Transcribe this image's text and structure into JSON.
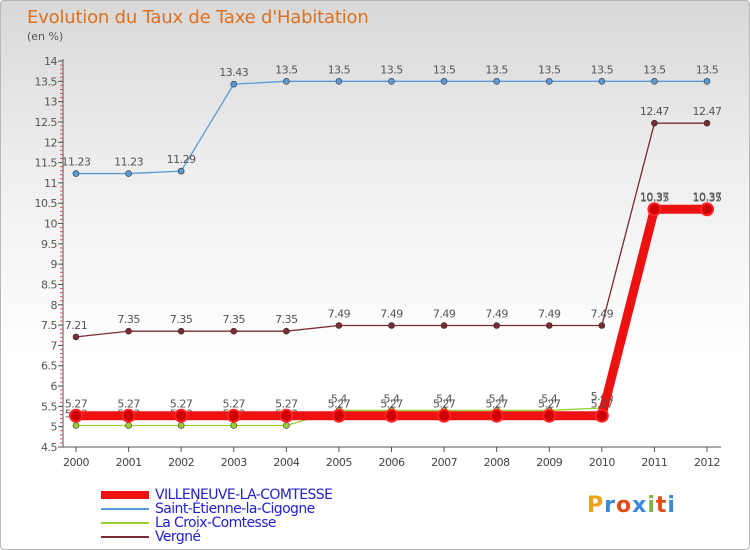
{
  "title": "Evolution du Taux de Taxe d'Habitation",
  "unit": "(en %)",
  "logo_text": "Proxiti",
  "chart_data": {
    "type": "line",
    "title": "Evolution du Taux de Taxe d'Habitation",
    "ylabel": "(en %)",
    "ylim": [
      4.5,
      14
    ],
    "yticks": [
      "4.5",
      "5",
      "5.5",
      "6",
      "6.5",
      "7",
      "7.5",
      "8",
      "8.5",
      "9",
      "9.5",
      "10",
      "10.5",
      "11",
      "11.5",
      "12",
      "12.5",
      "13",
      "13.5",
      "14"
    ],
    "x": [
      "2000",
      "2001",
      "2002",
      "2003",
      "2004",
      "2005",
      "2006",
      "2007",
      "2008",
      "2009",
      "2010",
      "2011",
      "2012"
    ],
    "grid": false,
    "legend_position": "bottom-left",
    "series": [
      {
        "name": "Saint-Étienne-la-Cigogne",
        "color": "#5b9bd5",
        "values": [
          11.23,
          11.23,
          11.29,
          13.43,
          13.5,
          13.5,
          13.5,
          13.5,
          13.5,
          13.5,
          13.5,
          13.5,
          13.5
        ],
        "labels": [
          "11.23",
          "11.23",
          "11.29",
          "13.43",
          "13.5",
          "13.5",
          "13.5",
          "13.5",
          "13.5",
          "13.5",
          "13.5",
          "13.5",
          "13.5"
        ]
      },
      {
        "name": "Vergné",
        "color": "#7a2a30",
        "values": [
          7.21,
          7.35,
          7.35,
          7.35,
          7.35,
          7.49,
          7.49,
          7.49,
          7.49,
          7.49,
          7.49,
          12.47,
          12.47
        ],
        "labels": [
          "7.21",
          "7.35",
          "7.35",
          "7.35",
          "7.35",
          "7.49",
          "7.49",
          "7.49",
          "7.49",
          "7.49",
          "7.49",
          "12.47",
          "12.47"
        ]
      },
      {
        "name": "La Croix-Comtesse",
        "color": "#9acd32",
        "values": [
          5.03,
          5.03,
          5.03,
          5.03,
          5.03,
          5.4,
          5.4,
          5.4,
          5.4,
          5.4,
          5.46,
          10.37,
          10.37
        ],
        "labels": [
          "5.03",
          "5.03",
          "5.03",
          "5.03",
          "5.03",
          "5.4",
          "5.4",
          "5.4",
          "5.4",
          "5.4",
          "5.46",
          "10.37",
          "10.37"
        ]
      },
      {
        "name": "VILLENEUVE-LA-COMTESSE",
        "color": "#ee1111",
        "values": [
          5.27,
          5.27,
          5.27,
          5.27,
          5.27,
          5.27,
          5.27,
          5.27,
          5.27,
          5.27,
          5.27,
          10.35,
          10.35
        ],
        "labels": [
          "5.27",
          "5.27",
          "5.27",
          "5.27",
          "5.27",
          "5.27",
          "5.27",
          "5.27",
          "5.27",
          "5.27",
          "5.27",
          "10.35",
          "10.35"
        ]
      }
    ]
  },
  "legend": [
    {
      "label": "VILLENEUVE-LA-COMTESSE",
      "color": "#ee1111",
      "text_color": "#2222cc",
      "thickness": "thick"
    },
    {
      "label": "Saint-Étienne-la-Cigogne",
      "color": "#5b9bd5",
      "text_color": "#2222cc",
      "thickness": "thin"
    },
    {
      "label": "La Croix-Comtesse",
      "color": "#9acd32",
      "text_color": "#2222cc",
      "thickness": "thin"
    },
    {
      "label": "Vergné",
      "color": "#7a2a30",
      "text_color": "#2222cc",
      "thickness": "thin"
    }
  ]
}
